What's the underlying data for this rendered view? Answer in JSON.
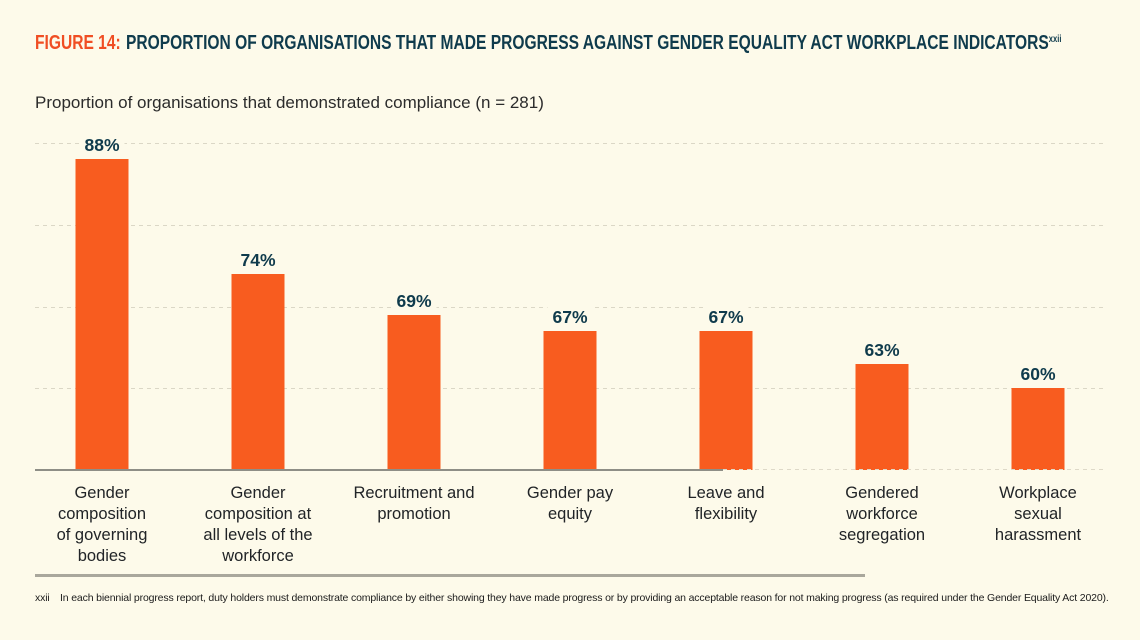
{
  "header": {
    "figure_label": "FIGURE 14:",
    "title": "PROPORTION OF ORGANISATIONS THAT MADE PROGRESS AGAINST GENDER EQUALITY ACT WORKPLACE INDICATORS",
    "title_superscript": "xxii",
    "subtitle": "Proportion of organisations that demonstrated compliance (n = 281)"
  },
  "chart_data": {
    "type": "bar",
    "title": "Proportion of organisations that demonstrated compliance (n = 281)",
    "categories": [
      "Gender\ncomposition\nof governing\nbodies",
      "Gender\ncomposition at\nall levels of the\nworkforce",
      "Recruitment and\npromotion",
      "Gender pay\nequity",
      "Leave and\nflexibility",
      "Gendered\nworkforce\nsegregation",
      "Workplace\nsexual\nharassment"
    ],
    "values": [
      88,
      74,
      69,
      67,
      67,
      63,
      60
    ],
    "value_labels": [
      "88%",
      "74%",
      "69%",
      "67%",
      "67%",
      "63%",
      "60%"
    ],
    "xlabel": "",
    "ylabel": "",
    "ylim": [
      50,
      90
    ],
    "gridlines": [
      60,
      70,
      80,
      90
    ],
    "grid_on": true,
    "legend_position": "none",
    "bar_color": "#F85C1F",
    "value_label_color": "#0F3B4C"
  },
  "footnote": {
    "marker": "xxii",
    "text": "In each biennial progress report, duty holders must demonstrate compliance by either showing they have made progress or by providing an acceptable reason for not making progress (as required under the Gender Equality Act 2020)."
  },
  "colors": {
    "background": "#FDFAEA",
    "bar_orange": "#F85C1F",
    "figure_label_orange": "#F04E23",
    "title_teal": "#0F3B4C",
    "gridline": "#DBD7C6",
    "axis_line": "#8E8E86"
  }
}
